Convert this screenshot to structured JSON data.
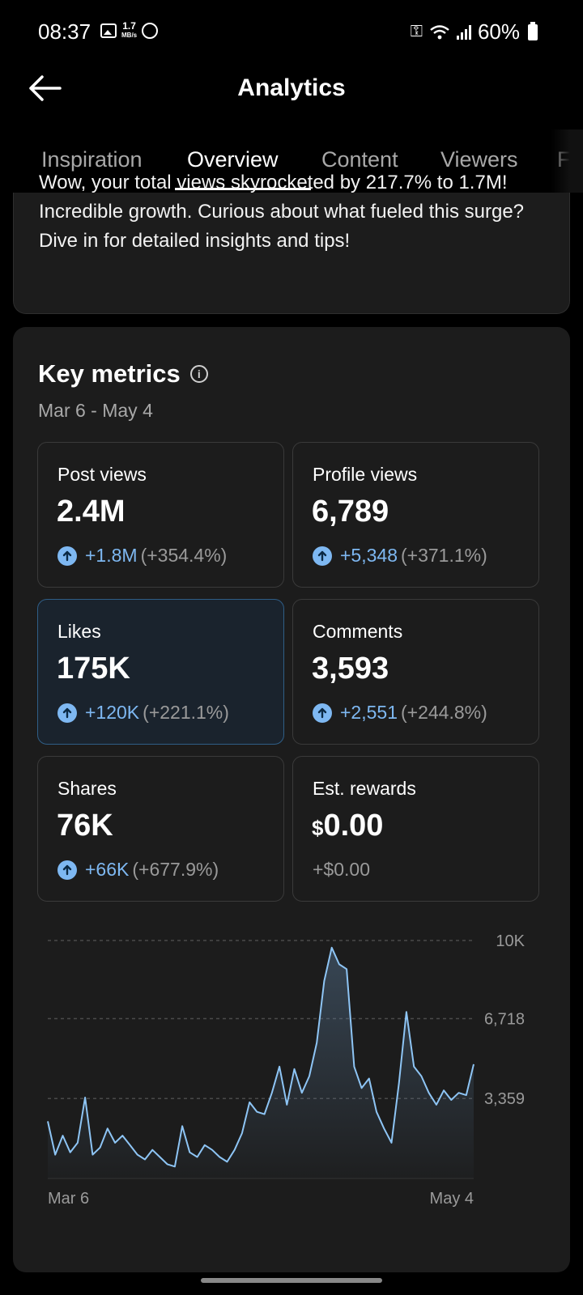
{
  "status_bar": {
    "time": "08:37",
    "net_speed_value": "1.7",
    "net_speed_unit": "MB/s",
    "battery": "60%",
    "icons": [
      "image-icon",
      "whatsapp-icon",
      "key-icon",
      "wifi-icon",
      "signal-icon",
      "battery-icon"
    ]
  },
  "header": {
    "title": "Analytics"
  },
  "tabs": [
    {
      "label": "Inspiration",
      "active": false
    },
    {
      "label": "Overview",
      "active": true
    },
    {
      "label": "Content",
      "active": false
    },
    {
      "label": "Viewers",
      "active": false
    },
    {
      "label": "F",
      "active": false
    }
  ],
  "insight": {
    "text": "Wow, your total views skyrocketed by 217.7% to 1.7M! Incredible growth. Curious about what fueled this surge? Dive in for detailed insights and tips!"
  },
  "key_metrics": {
    "title": "Key metrics",
    "date_range": "Mar 6 - May 4",
    "tiles": [
      {
        "label": "Post views",
        "value": "2.4M",
        "delta": "+1.8M",
        "pct": "(+354.4%)"
      },
      {
        "label": "Profile views",
        "value": "6,789",
        "delta": "+5,348",
        "pct": "(+371.1%)"
      },
      {
        "label": "Likes",
        "value": "175K",
        "delta": "+120K",
        "pct": "(+221.1%)",
        "selected": true
      },
      {
        "label": "Comments",
        "value": "3,593",
        "delta": "+2,551",
        "pct": "(+244.8%)"
      },
      {
        "label": "Shares",
        "value": "76K",
        "delta": "+66K",
        "pct": "(+677.9%)"
      },
      {
        "label": "Est. rewards",
        "currency": "$",
        "value": "0.00",
        "change": "+$0.00"
      }
    ]
  },
  "colors": {
    "accent": "#7eb8f2",
    "background": "#000000",
    "card": "#1c1c1c"
  },
  "chart_data": {
    "type": "area",
    "series": [
      {
        "values": [
          2400,
          1000,
          1800,
          1100,
          1500,
          3400,
          1000,
          1300,
          2100,
          1500,
          1800,
          1400,
          1000,
          800,
          1200,
          900,
          600,
          500,
          2200,
          1100,
          900,
          1400,
          1200,
          900,
          700,
          1200,
          1900,
          3200,
          2800,
          2700,
          3600,
          4700,
          3100,
          4600,
          3600,
          4300,
          5700,
          8300,
          9700,
          9000,
          8800,
          4700,
          3800,
          4200,
          2800,
          2100,
          1500,
          4000,
          7000,
          4700,
          4300,
          3600,
          3100,
          3700,
          3300,
          3600,
          3500,
          4800
        ]
      }
    ],
    "x_labels": [
      "Mar 6",
      "May 4"
    ],
    "y_ticks": [
      "10K",
      "6,718",
      "3,359"
    ],
    "ylim": [
      0,
      10000
    ],
    "grid": true
  }
}
